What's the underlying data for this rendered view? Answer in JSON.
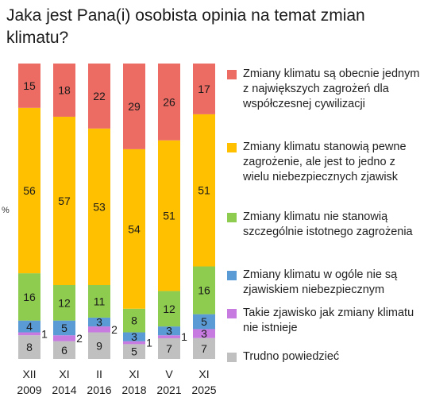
{
  "title": "Jaka jest Pana(i) osobista opinia na temat zmian klimatu?",
  "chart_data": {
    "type": "bar",
    "stacked": true,
    "ylabel": "%",
    "categories": [
      {
        "line1": "XII",
        "line2": "2009"
      },
      {
        "line1": "XI",
        "line2": "2014"
      },
      {
        "line1": "II",
        "line2": "2016"
      },
      {
        "line1": "XI",
        "line2": "2018"
      },
      {
        "line1": "V",
        "line2": "2021"
      },
      {
        "line1": "XI",
        "line2": "2025"
      }
    ],
    "series": [
      {
        "name": "Trudno powiedzieć",
        "color": "#c0c0c0",
        "values": [
          8,
          6,
          9,
          5,
          7,
          7
        ]
      },
      {
        "name": "Takie zjawisko jak zmiany klimatu nie istnieje",
        "color": "#c77be0",
        "values": [
          1,
          2,
          2,
          1,
          1,
          3
        ]
      },
      {
        "name": "Zmiany klimatu w ogóle nie są zjawiskiem niebezpiecznym",
        "color": "#5b9bd5",
        "values": [
          4,
          5,
          3,
          3,
          3,
          5
        ]
      },
      {
        "name": "Zmiany klimatu nie stanowią szczególnie istotnego zagrożenia",
        "color": "#8dcc4e",
        "values": [
          16,
          12,
          11,
          8,
          12,
          16
        ]
      },
      {
        "name": "Zmiany klimatu stanowią pewne zagrożenie, ale jest to jedno z wielu niebezpiecznych zjawisk",
        "color": "#ffc000",
        "values": [
          56,
          57,
          53,
          54,
          51,
          51
        ]
      },
      {
        "name": "Zmiany klimatu są obecnie jednym z największych zagrożeń dla współczesnej cywilizacji",
        "color": "#ec6b63",
        "values": [
          15,
          18,
          22,
          29,
          26,
          17
        ]
      }
    ]
  },
  "legend": [
    {
      "text": "Zmiany klimatu są obecnie jednym z największych zagrożeń dla współczesnej cywilizacji",
      "color": "#ec6b63"
    },
    {
      "text": "Zmiany klimatu stanowią pewne zagrożenie, ale jest to jedno z wielu niebezpiecznych zjawisk",
      "color": "#ffc000"
    },
    {
      "text": "Zmiany klimatu nie stanowią szczególnie istotnego zagrożenia",
      "color": "#8dcc4e"
    },
    {
      "text": "Zmiany klimatu w ogóle nie są zjawiskiem niebezpiecznym",
      "color": "#5b9bd5"
    },
    {
      "text": "Takie zjawisko jak zmiany klimatu nie istnieje",
      "color": "#c77be0"
    },
    {
      "text": "Trudno powiedzieć",
      "color": "#c0c0c0"
    }
  ]
}
